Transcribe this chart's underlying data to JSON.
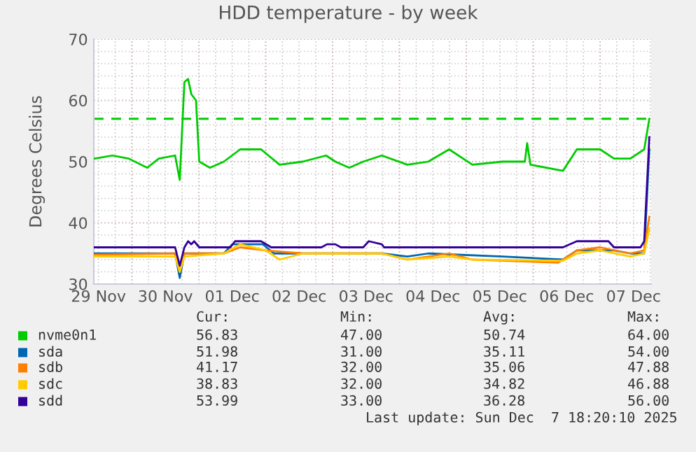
{
  "chart_data": {
    "type": "line",
    "title": "HDD temperature - by week",
    "ylabel": "Degrees Celsius",
    "xlim": [
      "2025-11-29T10:20",
      "2025-12-07T18:20"
    ],
    "xticks": [
      {
        "value": "2025-11-29T12:00",
        "label": "29 Nov"
      },
      {
        "value": "2025-11-30T12:00",
        "label": "30 Nov"
      },
      {
        "value": "2025-12-01T12:00",
        "label": "01 Dec"
      },
      {
        "value": "2025-12-02T12:00",
        "label": "02 Dec"
      },
      {
        "value": "2025-12-03T12:00",
        "label": "03 Dec"
      },
      {
        "value": "2025-12-04T12:00",
        "label": "04 Dec"
      },
      {
        "value": "2025-12-05T12:00",
        "label": "05 Dec"
      },
      {
        "value": "2025-12-06T12:00",
        "label": "06 Dec"
      },
      {
        "value": "2025-12-07T12:00",
        "label": "07 Dec"
      },
      {
        "value": "2025-11-30",
        "label": null
      },
      {
        "value": "2025-12-01",
        "label": null
      },
      {
        "value": "2025-12-02",
        "label": null
      },
      {
        "value": "2025-12-03",
        "label": null
      },
      {
        "value": "2025-12-04",
        "label": null
      },
      {
        "value": "2025-12-05",
        "label": null
      },
      {
        "value": "2025-12-06",
        "label": null
      },
      {
        "value": "2025-12-07",
        "label": null
      }
    ],
    "ylim": [
      30,
      70
    ],
    "yticks": [
      30,
      40,
      50,
      60,
      70
    ],
    "grid": true,
    "legend": "bottom",
    "marker": "none",
    "line_style": "solid",
    "ref_lines": [
      {
        "axis": "y",
        "value": 57,
        "color": "#00cc00",
        "line_style": "dashed"
      }
    ],
    "series": [
      {
        "name": "nvme0n1",
        "color": "#00cc00",
        "x": [
          "2025-11-29T10:40",
          "2025-11-29T17:00",
          "2025-11-29T22:50",
          "2025-11-30T05:30",
          "2025-11-30T09:40",
          "2025-11-30T15:30",
          "2025-11-30T17:10",
          "2025-11-30T18:50",
          "2025-11-30T20:10",
          "2025-11-30T21:20",
          "2025-11-30T23:00",
          "2025-12-01T00:10",
          "2025-12-01T04:00",
          "2025-12-01T09:00",
          "2025-12-01T14:50",
          "2025-12-01T22:20",
          "2025-12-02T05:00",
          "2025-12-02T13:20",
          "2025-12-02T21:40",
          "2025-12-03T01:00",
          "2025-12-03T06:00",
          "2025-12-03T11:00",
          "2025-12-03T17:40",
          "2025-12-04T02:50",
          "2025-12-04T10:20",
          "2025-12-04T17:50",
          "2025-12-05T02:10",
          "2025-12-05T13:00",
          "2025-12-05T21:00",
          "2025-12-05T21:50",
          "2025-12-05T23:00",
          "2025-12-06T10:40",
          "2025-12-06T15:40",
          "2025-12-07T00:00",
          "2025-12-07T05:00",
          "2025-12-07T10:50",
          "2025-12-07T15:50",
          "2025-12-07T17:40"
        ],
        "values": [
          50.5,
          51,
          50.5,
          49,
          50.5,
          51,
          47,
          63,
          63.5,
          61,
          60,
          50,
          49,
          50,
          52,
          52,
          49.5,
          50,
          51,
          50,
          49,
          50,
          51,
          49.5,
          50,
          52,
          49.5,
          50,
          50,
          53,
          49.5,
          48.5,
          52,
          52,
          50.5,
          50.5,
          52,
          57
        ]
      },
      {
        "name": "sda",
        "color": "#0066b3",
        "x": [
          "2025-11-29T10:40",
          "2025-11-30T15:30",
          "2025-11-30T17:10",
          "2025-11-30T18:50",
          "2025-12-01T09:00",
          "2025-12-01T12:00",
          "2025-12-01T23:00",
          "2025-12-02T03:00",
          "2025-12-03T17:40",
          "2025-12-04T02:50",
          "2025-12-04T10:20",
          "2025-12-05T13:00",
          "2025-12-06T10:40",
          "2025-12-06T15:40",
          "2025-12-07T05:00",
          "2025-12-07T10:50",
          "2025-12-07T15:50",
          "2025-12-07T17:40"
        ],
        "values": [
          35,
          35,
          31,
          35,
          35,
          36.5,
          36.5,
          35,
          35,
          34.5,
          35,
          34.5,
          34,
          35.5,
          35.5,
          35,
          35,
          52
        ]
      },
      {
        "name": "sdb",
        "color": "#ff8000",
        "x": [
          "2025-11-29T10:40",
          "2025-11-30T15:30",
          "2025-11-30T17:10",
          "2025-11-30T18:50",
          "2025-12-01T09:00",
          "2025-12-01T14:50",
          "2025-12-02T00:00",
          "2025-12-02T13:20",
          "2025-12-03T17:40",
          "2025-12-04T02:50",
          "2025-12-04T17:50",
          "2025-12-05T02:10",
          "2025-12-06T09:00",
          "2025-12-06T15:40",
          "2025-12-07T00:00",
          "2025-12-07T10:50",
          "2025-12-07T15:50",
          "2025-12-07T17:40"
        ],
        "values": [
          34.8,
          35,
          32,
          35,
          35,
          36,
          35.5,
          35,
          35,
          34,
          35,
          34,
          33.5,
          35.5,
          36,
          35,
          35.5,
          41
        ]
      },
      {
        "name": "sdc",
        "color": "#ffcc00",
        "x": [
          "2025-11-29T10:40",
          "2025-11-30T15:30",
          "2025-11-30T17:10",
          "2025-11-30T18:50",
          "2025-12-01T09:00",
          "2025-12-01T14:50",
          "2025-12-02T00:00",
          "2025-12-02T05:00",
          "2025-12-02T13:20",
          "2025-12-03T17:40",
          "2025-12-04T02:50",
          "2025-12-04T17:50",
          "2025-12-05T02:10",
          "2025-12-06T10:40",
          "2025-12-06T15:40",
          "2025-12-07T00:00",
          "2025-12-07T10:50",
          "2025-12-07T15:50",
          "2025-12-07T17:40"
        ],
        "values": [
          34.5,
          34.5,
          32,
          34.5,
          35,
          36.5,
          35.5,
          34,
          35,
          35,
          34,
          34.5,
          34,
          33.8,
          35,
          35.5,
          34.5,
          35,
          39
        ]
      },
      {
        "name": "sdd",
        "color": "#330099",
        "x": [
          "2025-11-29T10:40",
          "2025-11-30T15:30",
          "2025-11-30T17:10",
          "2025-11-30T18:50",
          "2025-11-30T20:10",
          "2025-11-30T21:20",
          "2025-11-30T22:20",
          "2025-12-01T00:10",
          "2025-12-01T11:20",
          "2025-12-01T13:00",
          "2025-12-01T22:20",
          "2025-12-02T02:00",
          "2025-12-02T20:00",
          "2025-12-02T22:00",
          "2025-12-03T01:00",
          "2025-12-03T03:00",
          "2025-12-03T11:00",
          "2025-12-03T13:00",
          "2025-12-03T17:40",
          "2025-12-03T18:30",
          "2025-12-06T10:40",
          "2025-12-06T15:40",
          "2025-12-07T03:00",
          "2025-12-07T05:00",
          "2025-12-07T14:30",
          "2025-12-07T15:50",
          "2025-12-07T17:40"
        ],
        "values": [
          36,
          36,
          33,
          36,
          37,
          36.5,
          37,
          36,
          36,
          37,
          37,
          36,
          36,
          36.5,
          36.5,
          36,
          36,
          37,
          36.5,
          36,
          36,
          37,
          37,
          36,
          36,
          37,
          54
        ]
      }
    ],
    "annotations": [
      "Cur:",
      "Min:",
      "Avg:",
      "Max:",
      "56.83",
      "47.00",
      "50.74",
      "64.00",
      "51.98",
      "31.00",
      "35.11",
      "54.00",
      "41.17",
      "32.00",
      "35.06",
      "47.88",
      "38.83",
      "32.00",
      "34.82",
      "46.88",
      "53.99",
      "33.00",
      "36.28",
      "56.00",
      "Last update: Sun Dec  7 18:20:10 2025"
    ]
  }
}
